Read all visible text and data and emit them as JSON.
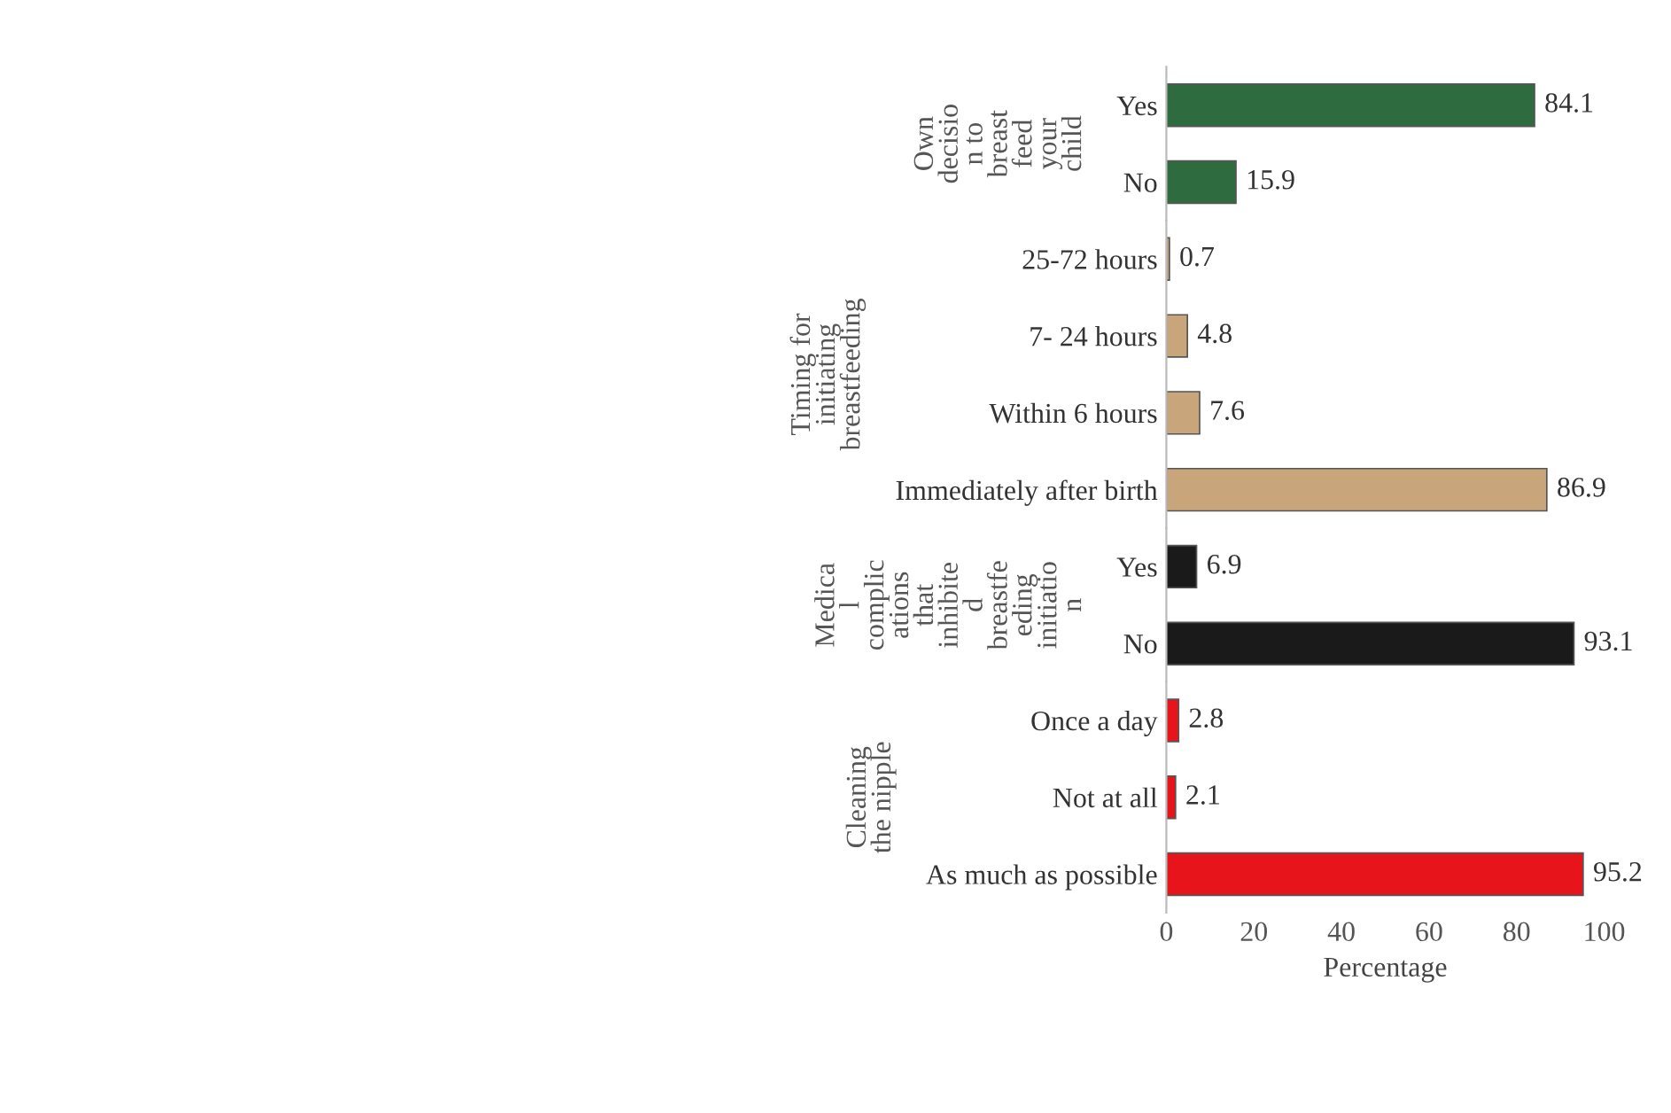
{
  "chart_data": [
    {
      "type": "bar",
      "orientation": "horizontal",
      "ylabel": "Own\ndecisio\nn to\nbreast\nfeed\nyour\nchild",
      "categories": [
        "Yes",
        "No"
      ],
      "values": [
        84.1,
        15.9
      ],
      "colors": [
        "#2e6b3e",
        "#2e6b3e"
      ],
      "xlim": [
        0,
        100
      ],
      "data_labels": true,
      "tick_labels": "y"
    },
    {
      "type": "bar",
      "orientation": "horizontal",
      "ylabel": "Timing for\ninitiating\nbreastfeeding",
      "categories": [
        "25-72 hours",
        "7- 24 hours",
        "Within 6 hours",
        "Immediately after birth"
      ],
      "values": [
        0.7,
        4.8,
        7.6,
        86.9
      ],
      "colors": [
        "#c8a57a",
        "#c8a57a",
        "#c8a57a",
        "#c8a57a"
      ],
      "xlim": [
        0,
        100
      ],
      "data_labels": true,
      "tick_labels": "y"
    },
    {
      "type": "bar",
      "orientation": "horizontal",
      "ylabel": "Medica\nl\ncomplic\nations\nthat\ninhibite\nd\nbreastfe\neding\ninitiatio\nn",
      "categories": [
        "Yes",
        "No"
      ],
      "values": [
        6.9,
        93.1
      ],
      "colors": [
        "#1a1a1a",
        "#1a1a1a"
      ],
      "xlim": [
        0,
        100
      ],
      "data_labels": true,
      "tick_labels": "y"
    },
    {
      "type": "bar",
      "orientation": "horizontal",
      "ylabel": "Cleaning\nthe nipple",
      "xlabel": "Percentage",
      "categories": [
        "Once a day",
        "Not at all",
        "As much as possible"
      ],
      "values": [
        2.8,
        2.1,
        95.2
      ],
      "colors": [
        "#e8141b",
        "#e8141b",
        "#e8141b"
      ],
      "xlim": [
        0,
        100
      ],
      "xticks": [
        0,
        20,
        40,
        60,
        80,
        100
      ],
      "data_labels": true
    }
  ]
}
